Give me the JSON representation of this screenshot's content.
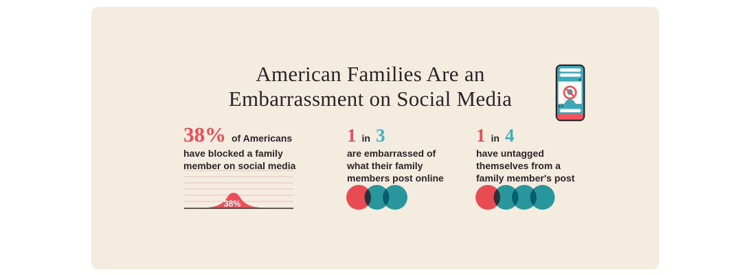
{
  "title": {
    "line1": "American Families Are an",
    "line2": "Embarrassment on Social Media"
  },
  "colors": {
    "page_bg": "#ffffff",
    "card_bg": "#f4ecdf",
    "ink": "#29242a",
    "red": "#ee4c57",
    "red_fill": "#f3525e",
    "teal": "#3cb2c2",
    "teal_fill": "#2aa2b1",
    "grid_pink": "#e9c1bb",
    "axis": "#4a4642",
    "phone_frame": "#26262e",
    "phone_screen": "#3aa9b7",
    "white": "#ffffff"
  },
  "icons": {
    "header_icon": "phone-blocked-user-icon",
    "unit_icon": "person-circle"
  },
  "stats": {
    "blocked": {
      "number": "38%",
      "lead": "of Americans",
      "lines": [
        "have blocked a family",
        "member on social media"
      ],
      "chart_label": "38%"
    },
    "embarrassed": {
      "num_a": "1",
      "connector": "in",
      "num_b": "3",
      "lines": [
        "are embarrassed of",
        "what their family",
        "members post online"
      ]
    },
    "untagged": {
      "num_a": "1",
      "connector": "in",
      "num_b": "4",
      "lines": [
        "have untagged",
        "themselves from a",
        "family member's post"
      ]
    }
  },
  "icon_arrays": [
    {
      "name": "1-in-3",
      "total": 3,
      "highlighted": 1
    },
    {
      "name": "1-in-4",
      "total": 4,
      "highlighted": 1
    }
  ],
  "chart_data": [
    {
      "type": "area",
      "subtype": "bell-curve-distribution",
      "title": "Americans who have blocked a family member on social media",
      "label": "38%",
      "value": 38,
      "unit": "percent",
      "gridlines": 6,
      "grid": "on",
      "legend": "none"
    },
    {
      "type": "icon_array",
      "title": "1 in 3 are embarrassed of what their family members post online",
      "numerator": 1,
      "denominator": 3,
      "highlight_color": "#f3525e",
      "base_color": "#2aa2b1"
    },
    {
      "type": "icon_array",
      "title": "1 in 4 have untagged themselves from a family member's post",
      "numerator": 1,
      "denominator": 4,
      "highlight_color": "#f3525e",
      "base_color": "#2aa2b1"
    }
  ]
}
